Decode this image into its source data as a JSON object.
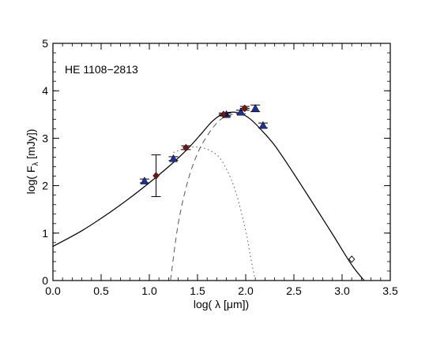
{
  "chart_data": {
    "type": "scatter",
    "title": "",
    "annotation": "HE 1108−2813",
    "xlabel": {
      "prefix": "log( λ [",
      "mu": "μ",
      "suffix": "m])"
    },
    "ylabel": {
      "prefix": "log( F",
      "sub": "λ",
      "suffix": " [mJy])"
    },
    "xlim": [
      0.0,
      3.5
    ],
    "ylim": [
      0,
      5
    ],
    "xticks": [
      0.0,
      0.5,
      1.0,
      1.5,
      2.0,
      2.5,
      3.0,
      3.5
    ],
    "xtick_labels": [
      "0.0",
      "0.5",
      "1.0",
      "1.5",
      "2.0",
      "2.5",
      "3.0",
      "3.5"
    ],
    "yticks": [
      0,
      1,
      2,
      3,
      4,
      5
    ],
    "ytick_labels": [
      "0",
      "1",
      "2",
      "3",
      "4",
      "5"
    ],
    "grid": false,
    "legend": "none",
    "colors": {
      "triangles": "#1e2f9e",
      "diamonds": "#7a1414",
      "curves": "#333333"
    },
    "series": [
      {
        "marker": "filled-triangle",
        "x": [
          0.95,
          1.25,
          1.8,
          1.95,
          2.1,
          2.18
        ],
        "y": [
          2.1,
          2.57,
          3.5,
          3.55,
          3.63,
          3.27
        ],
        "yerr": [
          0.04,
          0.04,
          0.03,
          0.04,
          0.07,
          0.05
        ]
      },
      {
        "marker": "filled-diamond",
        "x": [
          1.07,
          1.38,
          1.77,
          1.99
        ],
        "y": [
          2.21,
          2.8,
          3.5,
          3.63
        ],
        "yerr": [
          0.44,
          0.04,
          0.03,
          0.04
        ],
        "xerr": [
          0.0,
          0.03,
          0.05,
          0.05
        ]
      },
      {
        "marker": "open-diamond",
        "x": [
          3.1
        ],
        "y": [
          0.45
        ],
        "yerr": [
          0.0
        ]
      }
    ],
    "curves": [
      {
        "style": "solid",
        "x": [
          0.0,
          0.3,
          0.6,
          0.9,
          1.2,
          1.4,
          1.55,
          1.65,
          1.75,
          1.85,
          1.95,
          2.05,
          2.15,
          2.3,
          2.5,
          2.7,
          2.9,
          3.1,
          3.25
        ],
        "y": [
          0.72,
          1.05,
          1.45,
          1.9,
          2.4,
          2.78,
          3.12,
          3.35,
          3.5,
          3.55,
          3.52,
          3.4,
          3.2,
          2.85,
          2.25,
          1.62,
          0.98,
          0.33,
          -0.05
        ]
      },
      {
        "style": "dashed",
        "x": [
          1.22,
          1.3,
          1.4,
          1.5,
          1.6,
          1.7,
          1.78,
          1.85,
          1.95
        ],
        "y": [
          0.0,
          1.2,
          2.1,
          2.68,
          3.05,
          3.32,
          3.45,
          3.5,
          3.52
        ]
      },
      {
        "style": "dotted",
        "x": [
          1.25,
          1.4,
          1.55,
          1.7,
          1.8,
          1.9,
          2.0,
          2.05,
          2.1
        ],
        "y": [
          2.7,
          2.8,
          2.8,
          2.65,
          2.35,
          1.85,
          1.05,
          0.5,
          0.0
        ]
      }
    ]
  }
}
